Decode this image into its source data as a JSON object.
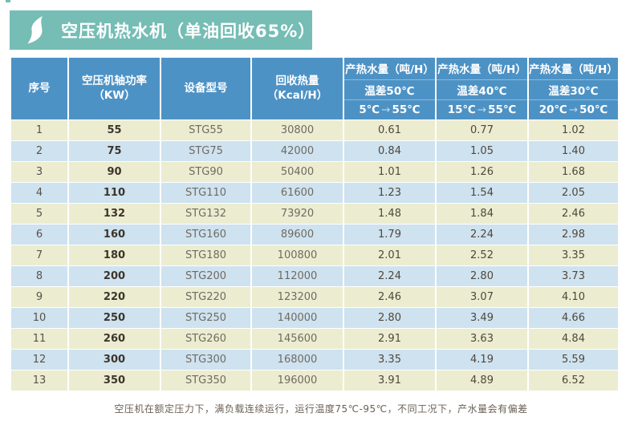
{
  "banner": {
    "logo_icon": "s-wave-logo-icon",
    "title": "空压机热水机（单油回收65%）",
    "color": "#75bdb5"
  },
  "colors": {
    "header_blue": "#4d92c5",
    "row_cream": "#ececd0",
    "row_blue": "#cee2f0",
    "banner_teal": "#75bdb5"
  },
  "icons": {
    "arrow_right": "→"
  },
  "table": {
    "headers": {
      "index": "序号",
      "power_line1": "空压机轴功率",
      "power_line2": "（KW）",
      "model": "设备型号",
      "heat_line1": "回收热量",
      "heat_line2": "（Kcal/H）",
      "water_groups": [
        {
          "title": "产热水量（吨/H）",
          "temp_diff": "温差50℃",
          "range_from": "5℃",
          "range_to": "55℃"
        },
        {
          "title": "产热水量（吨/H）",
          "temp_diff": "温差40℃",
          "range_from": "15℃",
          "range_to": "55℃"
        },
        {
          "title": "产热水量（吨/H）",
          "temp_diff": "温差30℃",
          "range_from": "20℃",
          "range_to": "50℃"
        }
      ]
    },
    "rows": [
      [
        "1",
        "55",
        "STG55",
        "30800",
        "0.61",
        "0.77",
        "1.02"
      ],
      [
        "2",
        "75",
        "STG75",
        "42000",
        "0.84",
        "1.05",
        "1.40"
      ],
      [
        "3",
        "90",
        "STG90",
        "50400",
        "1.01",
        "1.26",
        "1.68"
      ],
      [
        "4",
        "110",
        "STG110",
        "61600",
        "1.23",
        "1.54",
        "2.05"
      ],
      [
        "5",
        "132",
        "STG132",
        "73920",
        "1.48",
        "1.84",
        "2.46"
      ],
      [
        "6",
        "160",
        "STG160",
        "89600",
        "1.79",
        "2.24",
        "2.98"
      ],
      [
        "7",
        "180",
        "STG180",
        "100800",
        "2.01",
        "2.52",
        "3.35"
      ],
      [
        "8",
        "200",
        "STG200",
        "112000",
        "2.24",
        "2.80",
        "3.73"
      ],
      [
        "9",
        "220",
        "STG220",
        "123200",
        "2.46",
        "3.07",
        "4.10"
      ],
      [
        "10",
        "250",
        "STG250",
        "140000",
        "2.80",
        "3.49",
        "4.66"
      ],
      [
        "11",
        "260",
        "STG260",
        "145600",
        "2.91",
        "3.63",
        "4.84"
      ],
      [
        "12",
        "300",
        "STG300",
        "168000",
        "3.35",
        "4.19",
        "5.59"
      ],
      [
        "13",
        "350",
        "STG350",
        "196000",
        "3.91",
        "4.89",
        "6.52"
      ]
    ]
  },
  "footer_note": "空压机在额定压力下，满负载连续运行，运行温度75℃-95℃，不同工况下，产水量会有偏差"
}
